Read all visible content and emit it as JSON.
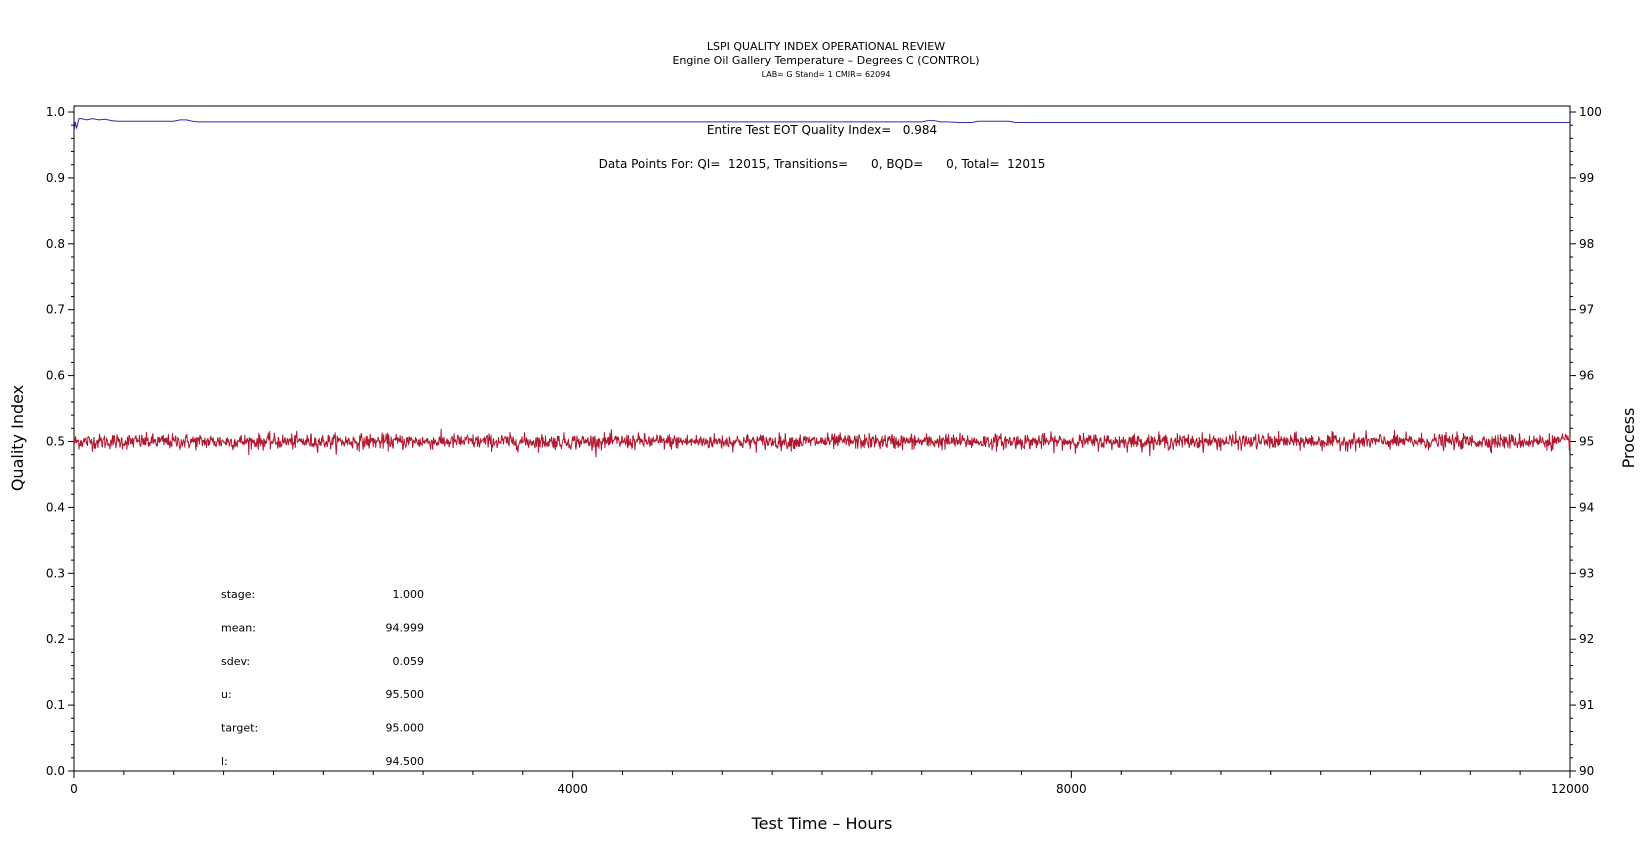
{
  "chart_data": {
    "type": "line",
    "title": "LSPI QUALITY INDEX OPERATIONAL REVIEW",
    "subtitle": "Engine Oil Gallery Temperature – Degrees C (CONTROL)",
    "subtitle2": "LAB= G Stand= 1 CMIR= 62094",
    "xlabel": "Test Time – Hours",
    "ylabel": "Quality Index",
    "y2label": "Process",
    "xlim": [
      0,
      12000
    ],
    "ylim": [
      0.0,
      1.0
    ],
    "y2lim": [
      90,
      100
    ],
    "x_tick_labels": [
      "0",
      "4000",
      "8000",
      "12000"
    ],
    "y_tick_labels": [
      "0.0",
      "0.1",
      "0.2",
      "0.3",
      "0.4",
      "0.5",
      "0.6",
      "0.7",
      "0.8",
      "0.9",
      "1.0"
    ],
    "y2_tick_labels": [
      "90",
      "91",
      "92",
      "93",
      "94",
      "95",
      "96",
      "97",
      "98",
      "99",
      "100"
    ],
    "annotations": {
      "quality_index": "Entire Test EOT Quality Index=   0.984",
      "data_points": "Data Points For: QI=  12015, Transitions=      0, BQD=      0, Total=  12015"
    },
    "stats": [
      {
        "label": "stage:",
        "value": "1.000"
      },
      {
        "label": "mean:",
        "value": "94.999"
      },
      {
        "label": "sdev:",
        "value": "0.059"
      },
      {
        "label": "u:",
        "value": "95.500"
      },
      {
        "label": "target:",
        "value": "95.000"
      },
      {
        "label": "l:",
        "value": "94.500"
      }
    ],
    "series": [
      {
        "axis": "left",
        "color": "#2b2bb0",
        "x": [
          0,
          10,
          20,
          40,
          60,
          100,
          150,
          200,
          250,
          300,
          350,
          400,
          600,
          800,
          850,
          900,
          950,
          1000,
          1500,
          2000,
          3000,
          4000,
          5000,
          6000,
          6800,
          6850,
          6900,
          6950,
          7000,
          7100,
          7200,
          7250,
          7300,
          7500,
          7550,
          8000,
          9000,
          10000,
          11000,
          12000
        ],
        "values": [
          0.97,
          0.985,
          0.975,
          0.99,
          0.99,
          0.988,
          0.99,
          0.988,
          0.989,
          0.987,
          0.986,
          0.986,
          0.986,
          0.986,
          0.988,
          0.988,
          0.986,
          0.985,
          0.985,
          0.985,
          0.985,
          0.985,
          0.985,
          0.985,
          0.985,
          0.987,
          0.987,
          0.985,
          0.985,
          0.984,
          0.984,
          0.986,
          0.986,
          0.986,
          0.984,
          0.984,
          0.984,
          0.984,
          0.984,
          0.984
        ]
      },
      {
        "axis": "right",
        "color": "#b0182f",
        "n": 12015,
        "mean": 94.999,
        "sdev": 0.059,
        "xrange": [
          0,
          12015
        ]
      }
    ]
  }
}
